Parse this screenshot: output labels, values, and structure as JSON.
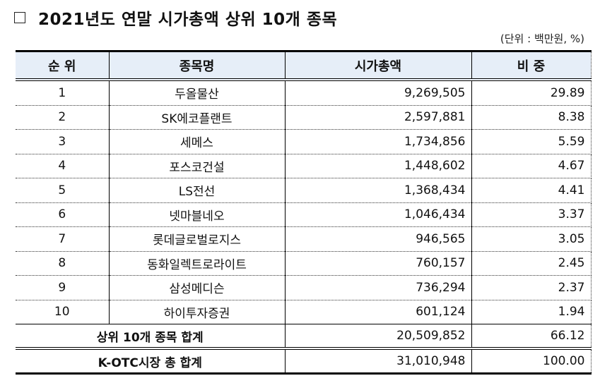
{
  "title": {
    "checkbox_icon": "empty-square",
    "text": "2021년도 연말 시가총액 상위 10개 종목"
  },
  "unit_note": "(단위 : 백만원, %)",
  "table": {
    "headers": [
      "순 위",
      "종목명",
      "시가총액",
      "비 중"
    ],
    "rows": [
      {
        "rank": "1",
        "name": "두올물산",
        "market_cap": "9,269,505",
        "share": "29.89"
      },
      {
        "rank": "2",
        "name": "SK에코플랜트",
        "market_cap": "2,597,881",
        "share": "8.38"
      },
      {
        "rank": "3",
        "name": "세메스",
        "market_cap": "1,734,856",
        "share": "5.59"
      },
      {
        "rank": "4",
        "name": "포스코건설",
        "market_cap": "1,448,602",
        "share": "4.67"
      },
      {
        "rank": "5",
        "name": "LS전선",
        "market_cap": "1,368,434",
        "share": "4.41"
      },
      {
        "rank": "6",
        "name": "넷마블네오",
        "market_cap": "1,046,434",
        "share": "3.37"
      },
      {
        "rank": "7",
        "name": "롯데글로벌로지스",
        "market_cap": "946,565",
        "share": "3.05"
      },
      {
        "rank": "8",
        "name": "동화일렉트로라이트",
        "market_cap": "760,157",
        "share": "2.45"
      },
      {
        "rank": "9",
        "name": "삼성메디슨",
        "market_cap": "736,294",
        "share": "2.37"
      },
      {
        "rank": "10",
        "name": "하이투자증권",
        "market_cap": "601,124",
        "share": "1.94"
      }
    ],
    "top10_total": {
      "label": "상위 10개 종목 합계",
      "market_cap": "20,509,852",
      "share": "66.12"
    },
    "market_total": {
      "label": "K-OTC시장 총 합계",
      "market_cap": "31,010,948",
      "share": "100.00"
    }
  },
  "colors": {
    "header_bg": "#e6eef8",
    "border": "#000000"
  }
}
